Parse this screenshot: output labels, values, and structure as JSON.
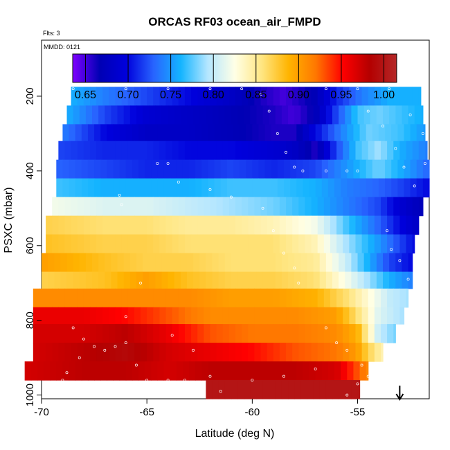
{
  "chart_data": {
    "type": "heatmap",
    "title": "ORCAS RF03 ocean_air_FMPD",
    "flights_note": "Flts: 3",
    "date_note": "MMDD: 0121",
    "xlabel": "Latitude (deg N)",
    "ylabel": "PSXC (mbar)",
    "xlim": [
      -70,
      -51.6
    ],
    "ylim": [
      1010,
      50
    ],
    "y_reversed": true,
    "x_ticks": [
      -70,
      -65,
      -60,
      -55
    ],
    "x_tick_labels": [
      "-70",
      "-65",
      "-60",
      "-55"
    ],
    "y_ticks": [
      200,
      400,
      600,
      800,
      1000
    ],
    "y_tick_labels": [
      "200",
      "400",
      "600",
      "800",
      "1000"
    ],
    "colorbar": {
      "min": 0.635,
      "max": 1.015,
      "ticks": [
        0.65,
        0.7,
        0.75,
        0.8,
        0.85,
        0.9,
        0.95,
        1.0
      ],
      "tick_labels": [
        "0.65",
        "0.70",
        "0.75",
        "0.80",
        "0.85",
        "0.90",
        "0.95",
        "1.00"
      ],
      "palette": [
        "#7f00ff",
        "#0000b4",
        "#0000dc",
        "#2864ff",
        "#14b4ff",
        "#b4e6ff",
        "#ffffe6",
        "#ffe682",
        "#ffb400",
        "#ff7800",
        "#ff0000",
        "#b40000",
        "#b42828"
      ]
    },
    "pressure_bands": [
      {
        "p": [
          175,
          225
        ],
        "x": [
          -68.6,
          -52.0
        ],
        "values": [
          [
            -68.6,
            0.76
          ],
          [
            -67.0,
            0.74
          ],
          [
            -65.0,
            0.72
          ],
          [
            -63.0,
            0.7
          ],
          [
            -61.0,
            0.68
          ],
          [
            -59.5,
            0.66
          ],
          [
            -58.5,
            0.65
          ],
          [
            -57.0,
            0.67
          ],
          [
            -56.0,
            0.71
          ],
          [
            -54.8,
            0.74
          ],
          [
            -53.5,
            0.76
          ],
          [
            -52.0,
            0.76
          ]
        ]
      },
      {
        "p": [
          225,
          275
        ],
        "x": [
          -68.8,
          -51.9
        ],
        "values": [
          [
            -68.8,
            0.76
          ],
          [
            -67.0,
            0.72
          ],
          [
            -65.0,
            0.69
          ],
          [
            -63.0,
            0.68
          ],
          [
            -61.0,
            0.67
          ],
          [
            -59.0,
            0.66
          ],
          [
            -58.0,
            0.65
          ],
          [
            -57.0,
            0.67
          ],
          [
            -56.0,
            0.72
          ],
          [
            -55.0,
            0.77
          ],
          [
            -54.0,
            0.78
          ],
          [
            -52.0,
            0.76
          ]
        ]
      },
      {
        "p": [
          275,
          320
        ],
        "x": [
          -69.0,
          -51.8
        ],
        "values": [
          [
            -69.0,
            0.74
          ],
          [
            -67.0,
            0.7
          ],
          [
            -65.0,
            0.68
          ],
          [
            -63.0,
            0.68
          ],
          [
            -61.0,
            0.67
          ],
          [
            -59.0,
            0.66
          ],
          [
            -58.0,
            0.66
          ],
          [
            -57.0,
            0.7
          ],
          [
            -55.5,
            0.75
          ],
          [
            -54.5,
            0.78
          ],
          [
            -53.0,
            0.77
          ],
          [
            -51.8,
            0.75
          ]
        ]
      },
      {
        "p": [
          320,
          370
        ],
        "x": [
          -69.2,
          -51.7
        ],
        "values": [
          [
            -69.2,
            0.72
          ],
          [
            -67.0,
            0.71
          ],
          [
            -65.0,
            0.71
          ],
          [
            -63.0,
            0.7
          ],
          [
            -61.0,
            0.7
          ],
          [
            -59.0,
            0.69
          ],
          [
            -58.0,
            0.68
          ],
          [
            -57.0,
            0.66
          ],
          [
            -56.0,
            0.72
          ],
          [
            -55.0,
            0.77
          ],
          [
            -54.0,
            0.79
          ],
          [
            -53.0,
            0.76
          ],
          [
            -51.7,
            0.74
          ]
        ]
      },
      {
        "p": [
          370,
          420
        ],
        "x": [
          -69.3,
          -51.6
        ],
        "values": [
          [
            -69.3,
            0.73
          ],
          [
            -67.0,
            0.72
          ],
          [
            -65.0,
            0.71
          ],
          [
            -63.0,
            0.71
          ],
          [
            -61.0,
            0.72
          ],
          [
            -59.0,
            0.71
          ],
          [
            -57.0,
            0.72
          ],
          [
            -55.5,
            0.75
          ],
          [
            -54.0,
            0.78
          ],
          [
            -53.0,
            0.76
          ],
          [
            -51.6,
            0.73
          ]
        ]
      },
      {
        "p": [
          420,
          470
        ],
        "x": [
          -69.3,
          -51.6
        ],
        "values": [
          [
            -69.3,
            0.77
          ],
          [
            -67.0,
            0.76
          ],
          [
            -65.0,
            0.76
          ],
          [
            -63.0,
            0.76
          ],
          [
            -61.0,
            0.77
          ],
          [
            -59.0,
            0.77
          ],
          [
            -57.0,
            0.76
          ],
          [
            -55.5,
            0.74
          ],
          [
            -54.0,
            0.73
          ],
          [
            -53.0,
            0.72
          ],
          [
            -51.6,
            0.7
          ]
        ]
      },
      {
        "p": [
          470,
          520
        ],
        "x": [
          -69.5,
          -51.9
        ],
        "values": [
          [
            -69.5,
            0.82
          ],
          [
            -67.0,
            0.81
          ],
          [
            -65.0,
            0.81
          ],
          [
            -63.0,
            0.8
          ],
          [
            -61.0,
            0.79
          ],
          [
            -59.0,
            0.78
          ],
          [
            -57.0,
            0.76
          ],
          [
            -55.5,
            0.74
          ],
          [
            -54.0,
            0.72
          ],
          [
            -53.0,
            0.69
          ],
          [
            -51.9,
            0.67
          ]
        ]
      },
      {
        "p": [
          520,
          570
        ],
        "x": [
          -69.8,
          -52.1
        ],
        "values": [
          [
            -69.8,
            0.87
          ],
          [
            -67.0,
            0.86
          ],
          [
            -65.0,
            0.86
          ],
          [
            -63.0,
            0.85
          ],
          [
            -61.0,
            0.85
          ],
          [
            -59.0,
            0.84
          ],
          [
            -57.0,
            0.82
          ],
          [
            -55.5,
            0.77
          ],
          [
            -54.0,
            0.73
          ],
          [
            -53.0,
            0.7
          ],
          [
            -52.1,
            0.68
          ]
        ]
      },
      {
        "p": [
          570,
          620
        ],
        "x": [
          -69.8,
          -52.3
        ],
        "values": [
          [
            -69.8,
            0.88
          ],
          [
            -67.0,
            0.87
          ],
          [
            -65.0,
            0.87
          ],
          [
            -63.0,
            0.86
          ],
          [
            -61.0,
            0.86
          ],
          [
            -59.0,
            0.86
          ],
          [
            -57.0,
            0.84
          ],
          [
            -55.5,
            0.79
          ],
          [
            -54.0,
            0.75
          ],
          [
            -53.0,
            0.72
          ],
          [
            -52.3,
            0.7
          ]
        ]
      },
      {
        "p": [
          620,
          670
        ],
        "x": [
          -70.0,
          -52.4
        ],
        "values": [
          [
            -70.0,
            0.9
          ],
          [
            -67.0,
            0.88
          ],
          [
            -65.0,
            0.87
          ],
          [
            -63.0,
            0.87
          ],
          [
            -61.0,
            0.86
          ],
          [
            -59.0,
            0.86
          ],
          [
            -57.0,
            0.85
          ],
          [
            -55.5,
            0.8
          ],
          [
            -54.5,
            0.76
          ],
          [
            -53.5,
            0.72
          ],
          [
            -52.4,
            0.7
          ]
        ]
      },
      {
        "p": [
          670,
          715
        ],
        "x": [
          -70.0,
          -52.4
        ],
        "values": [
          [
            -70.0,
            0.87
          ],
          [
            -67.0,
            0.88
          ],
          [
            -65.0,
            0.9
          ],
          [
            -63.0,
            0.88
          ],
          [
            -61.0,
            0.87
          ],
          [
            -59.0,
            0.87
          ],
          [
            -57.0,
            0.86
          ],
          [
            -55.5,
            0.82
          ],
          [
            -54.5,
            0.79
          ],
          [
            -53.5,
            0.76
          ],
          [
            -52.4,
            0.74
          ]
        ]
      },
      {
        "p": [
          715,
          765
        ],
        "x": [
          -70.4,
          -52.6
        ],
        "values": [
          [
            -70.4,
            0.91
          ],
          [
            -67.0,
            0.91
          ],
          [
            -65.0,
            0.91
          ],
          [
            -63.0,
            0.91
          ],
          [
            -61.0,
            0.9
          ],
          [
            -59.0,
            0.9
          ],
          [
            -57.0,
            0.89
          ],
          [
            -55.5,
            0.86
          ],
          [
            -54.5,
            0.83
          ],
          [
            -53.5,
            0.8
          ],
          [
            -52.6,
            0.79
          ]
        ]
      },
      {
        "p": [
          765,
          810
        ],
        "x": [
          -70.4,
          -52.8
        ],
        "values": [
          [
            -70.4,
            0.96
          ],
          [
            -68.0,
            0.96
          ],
          [
            -66.0,
            0.95
          ],
          [
            -64.0,
            0.93
          ],
          [
            -62.0,
            0.91
          ],
          [
            -60.0,
            0.91
          ],
          [
            -58.0,
            0.91
          ],
          [
            -56.0,
            0.9
          ],
          [
            -55.0,
            0.86
          ],
          [
            -54.0,
            0.81
          ],
          [
            -52.8,
            0.79
          ]
        ]
      },
      {
        "p": [
          810,
          860
        ],
        "x": [
          -70.4,
          -53.2
        ],
        "values": [
          [
            -70.4,
            0.97
          ],
          [
            -68.0,
            0.97
          ],
          [
            -66.0,
            0.98
          ],
          [
            -64.0,
            0.96
          ],
          [
            -62.0,
            0.93
          ],
          [
            -60.0,
            0.92
          ],
          [
            -58.0,
            0.92
          ],
          [
            -56.0,
            0.91
          ],
          [
            -55.0,
            0.89
          ],
          [
            -54.0,
            0.8
          ],
          [
            -53.2,
            0.78
          ]
        ]
      },
      {
        "p": [
          860,
          910
        ],
        "x": [
          -70.4,
          -53.8
        ],
        "values": [
          [
            -70.4,
            0.97
          ],
          [
            -68.0,
            0.98
          ],
          [
            -66.0,
            0.99
          ],
          [
            -64.0,
            0.97
          ],
          [
            -62.0,
            0.96
          ],
          [
            -60.0,
            0.95
          ],
          [
            -58.0,
            0.93
          ],
          [
            -56.0,
            0.92
          ],
          [
            -55.0,
            0.9
          ],
          [
            -54.5,
            0.87
          ],
          [
            -53.8,
            0.84
          ]
        ]
      },
      {
        "p": [
          910,
          960
        ],
        "x": [
          -70.8,
          -54.5
        ],
        "values": [
          [
            -70.8,
            0.97
          ],
          [
            -68.0,
            0.98
          ],
          [
            -66.0,
            0.98
          ],
          [
            -64.0,
            0.97
          ],
          [
            -62.0,
            0.98
          ],
          [
            -60.0,
            0.98
          ],
          [
            -58.0,
            0.98
          ],
          [
            -56.0,
            0.97
          ],
          [
            -55.0,
            0.93
          ],
          [
            -54.5,
            0.91
          ]
        ]
      },
      {
        "p": [
          960,
          1010
        ],
        "x": [
          -62.2,
          -54.9
        ],
        "values": [
          [
            -62.2,
            1.0
          ],
          [
            -60.0,
            1.0
          ],
          [
            -58.0,
            1.0
          ],
          [
            -56.0,
            1.0
          ],
          [
            -54.9,
            1.0
          ]
        ]
      }
    ],
    "flight_track": [
      [
        -68.5,
        180
      ],
      [
        -66.0,
        180
      ],
      [
        -64.0,
        180
      ],
      [
        -62.0,
        180
      ],
      [
        -60.5,
        180
      ],
      [
        -59.6,
        195
      ],
      [
        -59.2,
        240
      ],
      [
        -58.8,
        300
      ],
      [
        -58.4,
        350
      ],
      [
        -58.0,
        390
      ],
      [
        -57.6,
        400
      ],
      [
        -56.5,
        400
      ],
      [
        -55.5,
        400
      ],
      [
        -55.0,
        400
      ],
      [
        -56.5,
        180
      ],
      [
        -55.0,
        180
      ],
      [
        -53.5,
        180
      ],
      [
        -54.5,
        240
      ],
      [
        -53.8,
        280
      ],
      [
        -53.2,
        340
      ],
      [
        -52.8,
        390
      ],
      [
        -52.3,
        440
      ],
      [
        -51.8,
        380
      ],
      [
        -51.9,
        300
      ],
      [
        -52.5,
        250
      ],
      [
        -64.5,
        380
      ],
      [
        -64.0,
        380
      ],
      [
        -63.5,
        430
      ],
      [
        -62.0,
        450
      ],
      [
        -61.0,
        470
      ],
      [
        -59.5,
        500
      ],
      [
        -59.0,
        560
      ],
      [
        -58.5,
        620
      ],
      [
        -58.0,
        660
      ],
      [
        -57.8,
        700
      ],
      [
        -56.5,
        820
      ],
      [
        -55.5,
        880
      ],
      [
        -54.8,
        920
      ],
      [
        -54.5,
        950
      ],
      [
        -53.6,
        560
      ],
      [
        -53.4,
        610
      ],
      [
        -53.0,
        640
      ],
      [
        -52.6,
        690
      ],
      [
        -52.5,
        730
      ],
      [
        -52.6,
        790
      ],
      [
        -52.8,
        830
      ],
      [
        -66.3,
        465
      ],
      [
        -66.2,
        490
      ],
      [
        -65.3,
        700
      ],
      [
        -66.0,
        790
      ],
      [
        -68.5,
        820
      ],
      [
        -68.0,
        850
      ],
      [
        -67.5,
        870
      ],
      [
        -67.0,
        880
      ],
      [
        -66.5,
        870
      ],
      [
        -66.0,
        860
      ],
      [
        -65.5,
        920
      ],
      [
        -65.0,
        960
      ],
      [
        -64.0,
        960
      ],
      [
        -63.2,
        960
      ],
      [
        -63.8,
        840
      ],
      [
        -62.8,
        880
      ],
      [
        -62.0,
        950
      ],
      [
        -61.5,
        990
      ],
      [
        -60.0,
        960
      ],
      [
        -58.5,
        950
      ],
      [
        -57.0,
        930
      ],
      [
        -56.0,
        860
      ],
      [
        -55.0,
        970
      ],
      [
        -55.5,
        1000
      ],
      [
        -68.8,
        940
      ],
      [
        -69.0,
        960
      ],
      [
        -68.2,
        900
      ]
    ],
    "marker": {
      "x": -53.0,
      "symbol": "down-arrow"
    }
  }
}
